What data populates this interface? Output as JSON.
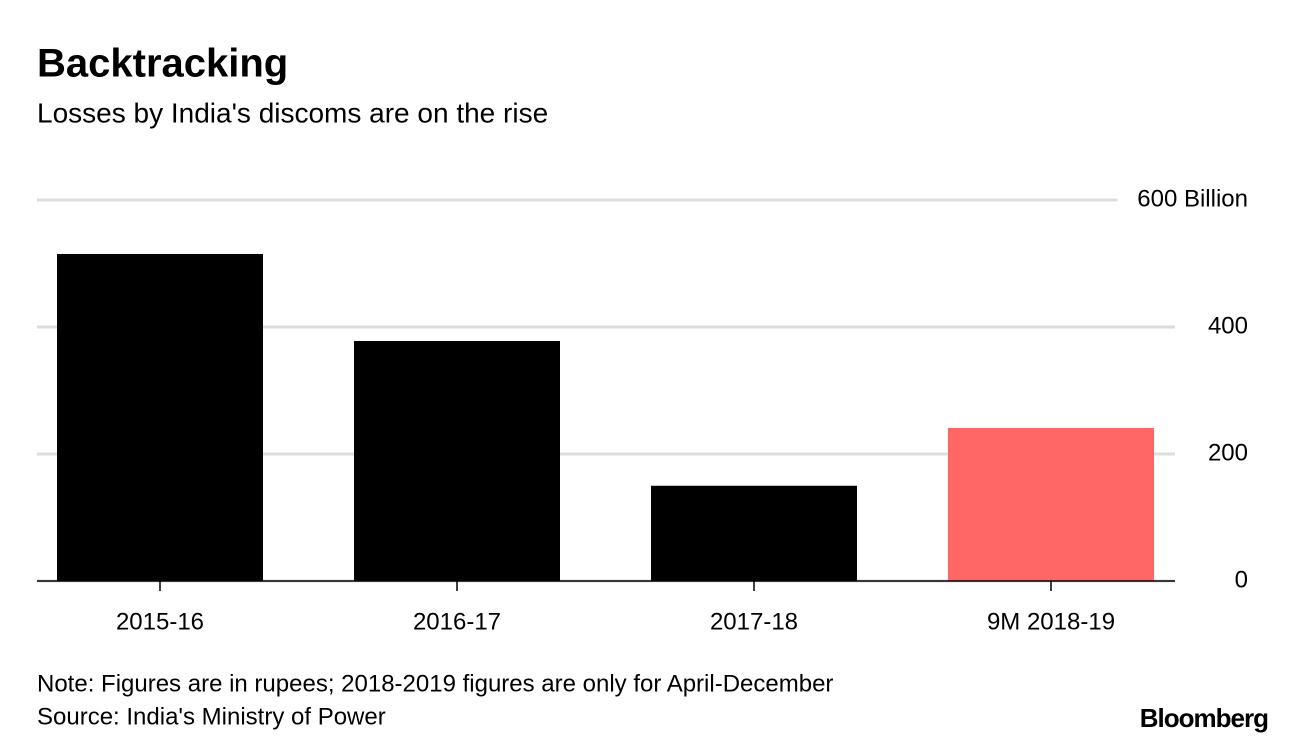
{
  "chart_data": {
    "type": "bar",
    "title": "Backtracking",
    "subtitle": "Losses by India's discoms are on the rise",
    "categories": [
      "2015-16",
      "2016-17",
      "2017-18",
      "9M 2018-19"
    ],
    "values": [
      515,
      378,
      150,
      241
    ],
    "colors": [
      "#000000",
      "#000000",
      "#000000",
      "#ff6666"
    ],
    "ylim": [
      0,
      600
    ],
    "yticks": [
      0,
      200,
      400,
      {
        "value": 600,
        "label": "600 Billion"
      }
    ],
    "grid": true,
    "note": "Note: Figures are in rupees; 2018-2019 figures are only for April-December",
    "source": "Source: India's Ministry of Power",
    "brand": "Bloomberg"
  }
}
